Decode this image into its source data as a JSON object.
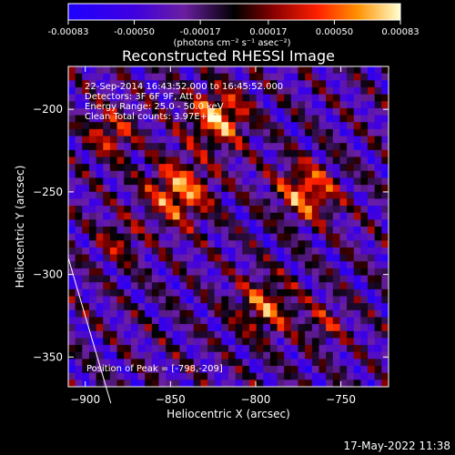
{
  "chart_data": {
    "type": "heatmap",
    "title": "Reconstructed RHESSI Image",
    "xlabel": "Heliocentric X (arcsec)",
    "ylabel": "Heliocentric Y (arcsec)",
    "xlim": [
      -910,
      -722
    ],
    "ylim": [
      -368,
      -174
    ],
    "x_ticks": [
      -900,
      -850,
      -800,
      -750
    ],
    "y_ticks": [
      -350,
      -300,
      -250,
      -200
    ],
    "colorbar": {
      "range": [
        -0.00083,
        0.00083
      ],
      "ticks": [
        "-0.00083",
        "-0.00050",
        "-0.00017",
        "0.00017",
        "0.00050",
        "0.00083"
      ],
      "unit_label": "(photons cm⁻² s⁻¹ asec⁻²)"
    },
    "annotations": [
      "22-Sep-2014 16:43:52.000 to 16:45:52.000",
      "Detectors: 3F 6F 9F, Att 0",
      "Energy Range: 25.0 - 50.0 keV",
      "Clean    Total counts: 3.97E+03"
    ],
    "peak_label": "Position of Peak = [-798,-209]",
    "peak": {
      "x": -798,
      "y": -209
    },
    "sources": [
      {
        "x": -822,
        "y": -205,
        "peak": 0.00083,
        "width": 12
      },
      {
        "x": -845,
        "y": -250,
        "peak": 0.0008,
        "width": 13
      },
      {
        "x": -770,
        "y": -250,
        "peak": 0.00075,
        "width": 12
      },
      {
        "x": -795,
        "y": -320,
        "peak": 0.00062,
        "width": 12
      },
      {
        "x": -885,
        "y": -215,
        "peak": 0.00055,
        "width": 10
      },
      {
        "x": -880,
        "y": -280,
        "peak": 0.0004,
        "width": 9
      },
      {
        "x": -760,
        "y": -330,
        "peak": 0.00035,
        "width": 9
      }
    ],
    "limb_line": {
      "x1": -910,
      "y1": -290,
      "x2": -885,
      "y2": -378
    },
    "grid": false
  },
  "footer": {
    "timestamp": "17-May-2022 11:38"
  }
}
